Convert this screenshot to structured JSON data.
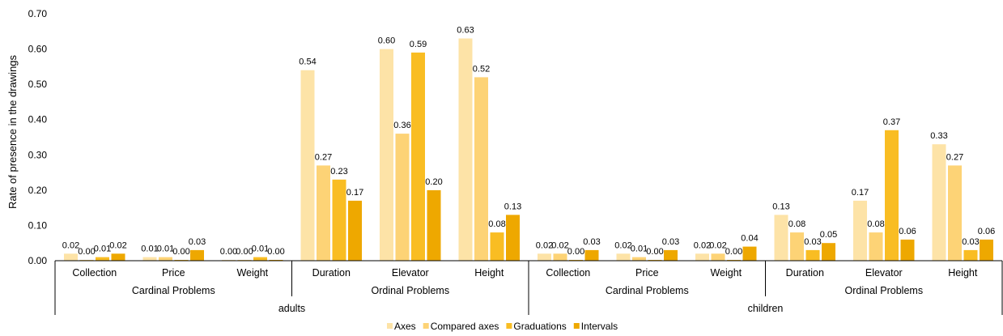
{
  "chart_data": {
    "type": "bar",
    "ylabel": "Rate of presence in the drawings",
    "ylim": [
      0,
      0.7
    ],
    "yticks": [
      "0.00",
      "0.10",
      "0.20",
      "0.30",
      "0.40",
      "0.50",
      "0.60",
      "0.70"
    ],
    "legend_position": "bottom",
    "series": [
      {
        "name": "Axes",
        "color": "#FDE3A7"
      },
      {
        "name": "Compared axes",
        "color": "#FDD376"
      },
      {
        "name": "Graduations",
        "color": "#F9BD23"
      },
      {
        "name": "Intervals",
        "color": "#EEA800"
      }
    ],
    "groups": [
      {
        "label": "adults",
        "subgroups": [
          {
            "label": "Cardinal Problems",
            "categories": [
              {
                "label": "Collection",
                "values": [
                  0.02,
                  0.0,
                  0.01,
                  0.02
                ],
                "labels": [
                  "0.02",
                  "0.00",
                  "0.01",
                  "0.02"
                ]
              },
              {
                "label": "Price",
                "values": [
                  0.01,
                  0.01,
                  0.0,
                  0.03
                ],
                "labels": [
                  "0.01",
                  "0.01",
                  "0.00",
                  "0.03"
                ]
              },
              {
                "label": "Weight",
                "values": [
                  0.0,
                  0.0,
                  0.01,
                  0.0
                ],
                "labels": [
                  "0.00",
                  "0.00",
                  "0.01",
                  "0.00"
                ]
              }
            ]
          },
          {
            "label": "Ordinal Problems",
            "categories": [
              {
                "label": "Duration",
                "values": [
                  0.54,
                  0.27,
                  0.23,
                  0.17
                ],
                "labels": [
                  "0.54",
                  "0.27",
                  "0.23",
                  "0.17"
                ]
              },
              {
                "label": "Elevator",
                "values": [
                  0.6,
                  0.36,
                  0.59,
                  0.2
                ],
                "labels": [
                  "0.60",
                  "0.36",
                  "0.59",
                  "0.20"
                ]
              },
              {
                "label": "Height",
                "values": [
                  0.63,
                  0.52,
                  0.08,
                  0.13
                ],
                "labels": [
                  "0.63",
                  "0.52",
                  "0.08",
                  "0.13"
                ]
              }
            ]
          }
        ]
      },
      {
        "label": "children",
        "subgroups": [
          {
            "label": "Cardinal Problems",
            "categories": [
              {
                "label": "Collection",
                "values": [
                  0.02,
                  0.02,
                  0.0,
                  0.03
                ],
                "labels": [
                  "0.02",
                  "0.02",
                  "0.00",
                  "0.03"
                ]
              },
              {
                "label": "Price",
                "values": [
                  0.02,
                  0.01,
                  0.0,
                  0.03
                ],
                "labels": [
                  "0.02",
                  "0.01",
                  "0.00",
                  "0.03"
                ]
              },
              {
                "label": "Weight",
                "values": [
                  0.02,
                  0.02,
                  0.0,
                  0.04
                ],
                "labels": [
                  "0.02",
                  "0.02",
                  "0.00",
                  "0.04"
                ]
              }
            ]
          },
          {
            "label": "Ordinal Problems",
            "categories": [
              {
                "label": "Duration",
                "values": [
                  0.13,
                  0.08,
                  0.03,
                  0.05
                ],
                "labels": [
                  "0.13",
                  "0.08",
                  "0.03",
                  "0.05"
                ]
              },
              {
                "label": "Elevator",
                "values": [
                  0.17,
                  0.08,
                  0.37,
                  0.06
                ],
                "labels": [
                  "0.17",
                  "0.08",
                  "0.37",
                  "0.06"
                ]
              },
              {
                "label": "Height",
                "values": [
                  0.33,
                  0.27,
                  0.03,
                  0.06
                ],
                "labels": [
                  "0.33",
                  "0.27",
                  "0.03",
                  "0.06"
                ]
              }
            ]
          }
        ]
      }
    ]
  }
}
